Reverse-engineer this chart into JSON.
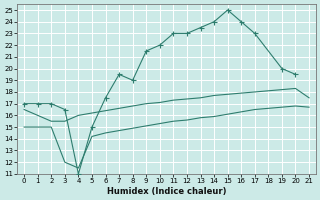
{
  "xlabel": "Humidex (Indice chaleur)",
  "bg_color": "#cceae7",
  "grid_color": "#ffffff",
  "line_color": "#2e7d6e",
  "xlim": [
    -0.5,
    21.5
  ],
  "ylim": [
    11,
    25.5
  ],
  "xticks": [
    0,
    1,
    2,
    3,
    4,
    5,
    6,
    7,
    8,
    9,
    10,
    11,
    12,
    13,
    14,
    15,
    16,
    17,
    18,
    19,
    20,
    21
  ],
  "yticks": [
    11,
    12,
    13,
    14,
    15,
    16,
    17,
    18,
    19,
    20,
    21,
    22,
    23,
    24,
    25
  ],
  "main_x": [
    0,
    1,
    2,
    3,
    4,
    5,
    6,
    7,
    8,
    9,
    10,
    11,
    12,
    13,
    14,
    15,
    16,
    17,
    19,
    20
  ],
  "main_y": [
    17.0,
    17.0,
    17.0,
    16.5,
    11.0,
    15.0,
    17.5,
    19.5,
    19.0,
    21.5,
    22.0,
    23.0,
    23.0,
    23.5,
    24.0,
    25.0,
    24.0,
    23.0,
    20.0,
    19.5
  ],
  "mid_x": [
    0,
    2,
    3,
    4,
    5,
    6,
    7,
    8,
    9,
    10,
    11,
    12,
    13,
    14,
    15,
    16,
    17,
    18,
    19,
    20,
    21
  ],
  "mid_y": [
    16.5,
    15.5,
    15.5,
    16.0,
    16.2,
    16.4,
    16.6,
    16.8,
    17.0,
    17.1,
    17.3,
    17.4,
    17.5,
    17.7,
    17.8,
    17.9,
    18.0,
    18.1,
    18.2,
    18.3,
    17.5
  ],
  "low_x": [
    0,
    2,
    3,
    4,
    5,
    6,
    7,
    8,
    9,
    10,
    11,
    12,
    13,
    14,
    15,
    16,
    17,
    18,
    19,
    20,
    21
  ],
  "low_y": [
    15.0,
    15.0,
    12.0,
    11.5,
    14.2,
    14.5,
    14.7,
    14.9,
    15.1,
    15.3,
    15.5,
    15.6,
    15.8,
    15.9,
    16.1,
    16.3,
    16.5,
    16.6,
    16.7,
    16.8,
    16.7
  ]
}
